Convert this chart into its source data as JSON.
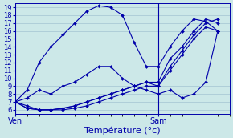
{
  "xlabel": "Température (°c)",
  "bg_color": "#cce8e8",
  "grid_color": "#99bbcc",
  "line_color": "#0000aa",
  "ylim": [
    5.5,
    19.5
  ],
  "yticks": [
    6,
    7,
    8,
    9,
    10,
    11,
    12,
    13,
    14,
    15,
    16,
    17,
    18,
    19
  ],
  "xlim": [
    0,
    36
  ],
  "ven_x": 0,
  "sam_x": 24,
  "series": [
    {
      "x": [
        0,
        2,
        4,
        6,
        8,
        10,
        12,
        14,
        16,
        18,
        20,
        22,
        24,
        26,
        28,
        30,
        32,
        34
      ],
      "y": [
        7.0,
        8.5,
        12.0,
        14.0,
        15.5,
        17.0,
        18.5,
        19.2,
        19.0,
        18.0,
        14.5,
        11.5,
        11.5,
        14.0,
        16.0,
        17.5,
        17.2,
        16.0
      ]
    },
    {
      "x": [
        0,
        2,
        4,
        6,
        8,
        10,
        12,
        14,
        16,
        18,
        20,
        22,
        24,
        26,
        28,
        30,
        32,
        34
      ],
      "y": [
        7.0,
        6.5,
        6.0,
        6.0,
        6.2,
        6.5,
        7.0,
        7.5,
        8.0,
        8.5,
        9.0,
        9.5,
        9.5,
        12.5,
        14.0,
        16.0,
        17.5,
        17.0
      ]
    },
    {
      "x": [
        0,
        2,
        4,
        6,
        8,
        10,
        12,
        14,
        16,
        18,
        20,
        22,
        24,
        26,
        28,
        30,
        32,
        34
      ],
      "y": [
        7.0,
        6.2,
        6.0,
        6.0,
        6.0,
        6.2,
        6.5,
        7.0,
        7.5,
        8.0,
        8.5,
        9.0,
        9.0,
        11.5,
        13.5,
        15.5,
        17.0,
        17.5
      ]
    },
    {
      "x": [
        0,
        2,
        4,
        6,
        8,
        10,
        12,
        14,
        16,
        18,
        20,
        22,
        24,
        26,
        28,
        30,
        32,
        34
      ],
      "y": [
        7.0,
        6.2,
        6.0,
        6.0,
        6.2,
        6.5,
        7.0,
        7.5,
        8.0,
        8.5,
        9.0,
        9.5,
        9.0,
        11.0,
        13.0,
        15.0,
        16.5,
        16.0
      ]
    },
    {
      "x": [
        0,
        2,
        4,
        6,
        8,
        10,
        12,
        14,
        16,
        18,
        20,
        22,
        24,
        26,
        28,
        30,
        32,
        34
      ],
      "y": [
        7.0,
        7.5,
        8.5,
        8.0,
        9.0,
        9.5,
        10.5,
        11.5,
        11.5,
        10.0,
        9.0,
        8.5,
        8.0,
        8.5,
        7.5,
        8.0,
        9.5,
        16.0
      ]
    }
  ],
  "xlabel_fontsize": 8,
  "ytick_fontsize": 6,
  "xtick_fontsize": 7
}
